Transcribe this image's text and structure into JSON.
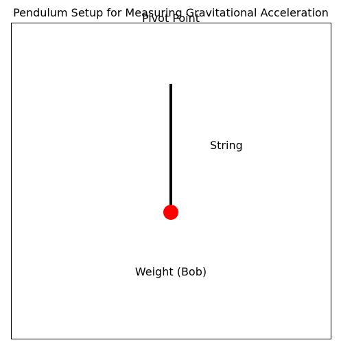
{
  "title": "Pendulum Setup for Measuring Gravitational Acceleration",
  "labels": {
    "pivot": "Pivot Point",
    "string": "String",
    "bob": "Weight (Bob)"
  },
  "colors": {
    "string": "#000000",
    "bob": "#ff0000",
    "frame": "#000000"
  }
}
